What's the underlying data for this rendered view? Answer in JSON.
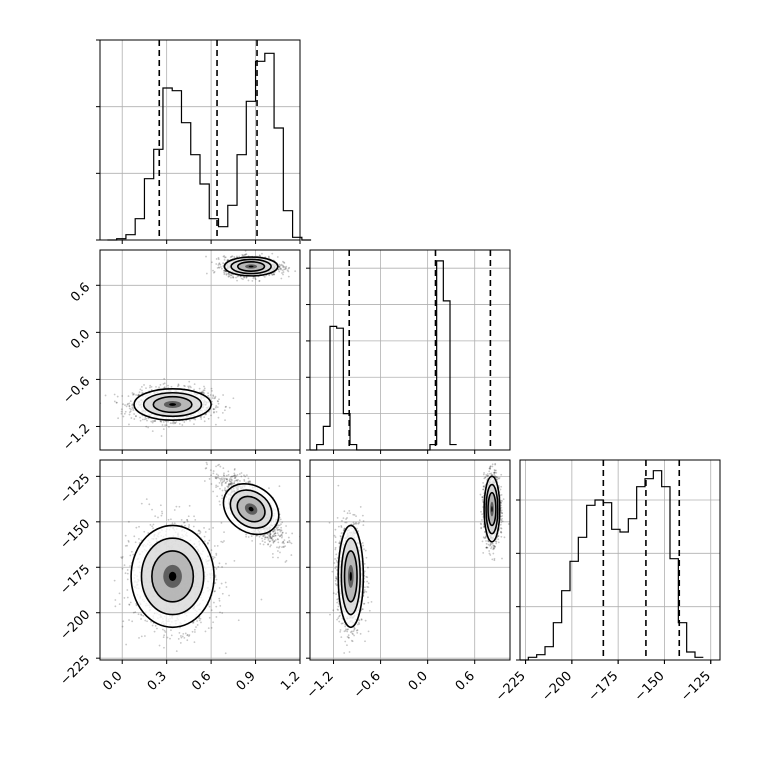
{
  "figure": {
    "type": "corner-plot",
    "colors": {
      "ink": "#000000",
      "grid": "#b0b0b0",
      "background": "#ffffff"
    }
  },
  "chart_data": [
    {
      "id": "hist-p1",
      "type": "histogram",
      "grid": true,
      "xlim": [
        -0.15,
        1.2
      ],
      "bin_start": -0.1,
      "bin_width": 0.0625,
      "counts": [
        0,
        0.5,
        2,
        8,
        23,
        34,
        57,
        56,
        44,
        32,
        21,
        8,
        5,
        13,
        32,
        52,
        67,
        70,
        42,
        11,
        1,
        0
      ],
      "ymax": 75,
      "yticks": [
        0,
        25,
        50,
        75
      ],
      "quantiles": [
        0.25,
        0.64,
        0.91
      ]
    },
    {
      "id": "scatter-p2-vs-p1",
      "type": "scatter",
      "grid": true,
      "xlim": [
        -0.15,
        1.2
      ],
      "ylim": [
        -1.5,
        1.05
      ],
      "xticks": [
        0.0,
        0.3,
        0.6,
        0.9,
        1.2
      ],
      "xtick_labels": [
        "0.0",
        "0.3",
        "0.6",
        "0.9",
        "1.2"
      ],
      "yticks": [
        -1.2,
        -0.6,
        0.0,
        0.6
      ],
      "ytick_labels": [
        "−1.2",
        "−0.6",
        "0.0",
        "0.6"
      ],
      "clusters": [
        {
          "center": [
            0.34,
            -0.92
          ],
          "spread": [
            0.13,
            0.1
          ],
          "corr": 0,
          "n": 1500
        },
        {
          "center": [
            0.87,
            0.84
          ],
          "spread": [
            0.09,
            0.06
          ],
          "corr": 0,
          "n": 1500
        }
      ]
    },
    {
      "id": "hist-p2",
      "type": "histogram",
      "grid": true,
      "xlim": [
        -1.5,
        1.05
      ],
      "bin_start": -1.5,
      "bin_width": 0.085,
      "counts": [
        0,
        3,
        13,
        68,
        67,
        20,
        3,
        0,
        0,
        0,
        0,
        0,
        0,
        0,
        0,
        0,
        0,
        0,
        3,
        104,
        82,
        3
      ],
      "ymax": 110,
      "yticks": [
        0,
        20,
        40,
        60,
        80,
        100
      ],
      "quantiles": [
        -1.0,
        0.1,
        0.8
      ]
    },
    {
      "id": "scatter-p3-vs-p1",
      "type": "scatter",
      "grid": true,
      "xlim": [
        -0.15,
        1.2
      ],
      "ylim": [
        -226,
        -116
      ],
      "xticks": [
        0.0,
        0.3,
        0.6,
        0.9,
        1.2
      ],
      "xtick_labels": [
        "0.0",
        "0.3",
        "0.6",
        "0.9",
        "1.2"
      ],
      "yticks": [
        -225,
        -200,
        -175,
        -150,
        -125
      ],
      "ytick_labels": [
        "−225",
        "−200",
        "−175",
        "−150",
        "−125"
      ],
      "clusters": [
        {
          "center": [
            0.34,
            -180
          ],
          "spread": [
            0.14,
            14
          ],
          "corr": 0,
          "n": 1500
        },
        {
          "center": [
            0.87,
            -143
          ],
          "spread": [
            0.1,
            9
          ],
          "corr": -0.75,
          "n": 1500
        }
      ]
    },
    {
      "id": "scatter-p3-vs-p2",
      "type": "scatter",
      "grid": true,
      "xlim": [
        -1.5,
        1.05
      ],
      "ylim": [
        -226,
        -116
      ],
      "xticks": [
        -1.2,
        -0.6,
        0.0,
        0.6
      ],
      "xtick_labels": [
        "−1.2",
        "−0.6",
        "0.0",
        "0.6"
      ],
      "yticks": [
        -225,
        -200,
        -175,
        -150,
        -125
      ],
      "clusters": [
        {
          "center": [
            -0.98,
            -180
          ],
          "spread": [
            0.08,
            14
          ],
          "corr": 0,
          "n": 1500
        },
        {
          "center": [
            0.82,
            -143
          ],
          "spread": [
            0.05,
            9
          ],
          "corr": 0,
          "n": 1500
        }
      ]
    },
    {
      "id": "hist-p3",
      "type": "histogram",
      "grid": true,
      "xlim": [
        -228,
        -120
      ],
      "bin_start": -228,
      "bin_width": 4.5,
      "counts": [
        0,
        1,
        2,
        5,
        14,
        26,
        37,
        46,
        58,
        60,
        59,
        49,
        48,
        53,
        65,
        68,
        71,
        65,
        38,
        14,
        3,
        1
      ],
      "ymax": 75,
      "yticks": [
        0,
        20,
        40,
        60
      ],
      "xticks": [
        -225,
        -200,
        -175,
        -150,
        -125
      ],
      "xtick_labels": [
        "−225",
        "−200",
        "−175",
        "−150",
        "−125"
      ],
      "quantiles": [
        -183,
        -160,
        -142
      ]
    }
  ]
}
